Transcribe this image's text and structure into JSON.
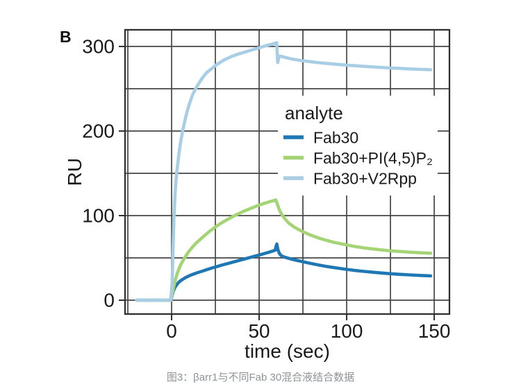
{
  "panel_label": "B",
  "caption": {
    "text": "图3：βarr1与不同Fab 30混合液结合数据",
    "color": "#8e9297"
  },
  "chart_data": {
    "type": "line",
    "title": "",
    "xlabel": "time (sec)",
    "ylabel": "RU",
    "xlim": [
      -26.6,
      158.7
    ],
    "ylim": [
      -16.4,
      319.7
    ],
    "xticks": [
      0,
      50,
      100,
      150
    ],
    "yticks": [
      0,
      100,
      200,
      300
    ],
    "xgrid": [
      -25,
      0,
      25,
      50,
      75,
      100,
      125,
      150
    ],
    "ygrid": [
      0,
      50,
      100,
      150,
      200,
      250,
      300
    ],
    "grid": true,
    "colors": {
      "grid": "#454545",
      "frame": "#303030",
      "text": "#1a1a1a",
      "legend_bg": "#ffffff"
    },
    "legend": {
      "title": "analyte",
      "position": "inside-upper-right"
    },
    "series": [
      {
        "name": "Fab30",
        "color": "#1f78b4",
        "points": [
          [
            -20,
            0
          ],
          [
            -5,
            0
          ],
          [
            -0.5,
            0
          ],
          [
            0.5,
            7
          ],
          [
            1,
            11
          ],
          [
            2,
            15.5
          ],
          [
            3,
            18.5
          ],
          [
            4,
            21
          ],
          [
            5,
            22.8
          ],
          [
            6,
            24.3
          ],
          [
            8,
            26.8
          ],
          [
            10,
            28.8
          ],
          [
            12,
            30.5
          ],
          [
            14,
            32
          ],
          [
            17,
            34
          ],
          [
            20,
            36
          ],
          [
            23,
            38
          ],
          [
            26,
            39.8
          ],
          [
            29,
            41.6
          ],
          [
            32,
            43.3
          ],
          [
            35,
            45
          ],
          [
            38,
            46.7
          ],
          [
            41,
            48.4
          ],
          [
            44,
            50
          ],
          [
            47,
            51.7
          ],
          [
            50,
            53.4
          ],
          [
            53,
            55.2
          ],
          [
            56,
            57
          ],
          [
            58,
            58.3
          ],
          [
            59.2,
            59.2
          ],
          [
            59.6,
            63
          ],
          [
            60.1,
            66.5
          ],
          [
            60.7,
            60
          ],
          [
            61.5,
            55.5
          ],
          [
            62.5,
            52.8
          ],
          [
            64,
            51.3
          ],
          [
            66,
            50
          ],
          [
            69,
            48.3
          ],
          [
            72,
            46.8
          ],
          [
            76,
            45
          ],
          [
            80,
            43.2
          ],
          [
            84,
            41.6
          ],
          [
            88,
            40.1
          ],
          [
            92,
            38.8
          ],
          [
            96,
            37.6
          ],
          [
            100,
            36.4
          ],
          [
            105,
            35.1
          ],
          [
            110,
            34
          ],
          [
            115,
            33
          ],
          [
            120,
            32.1
          ],
          [
            125,
            31.3
          ],
          [
            130,
            30.6
          ],
          [
            136,
            29.9
          ],
          [
            142,
            29.3
          ],
          [
            148,
            28.8
          ]
        ]
      },
      {
        "name": "Fab30+PI(4,5)P₂",
        "color": "#a4d475",
        "points": [
          [
            -20,
            0
          ],
          [
            -5,
            0
          ],
          [
            -0.5,
            0
          ],
          [
            0.5,
            8
          ],
          [
            1,
            14
          ],
          [
            2,
            23
          ],
          [
            3,
            30
          ],
          [
            4,
            36
          ],
          [
            5,
            41
          ],
          [
            6,
            45
          ],
          [
            8,
            52
          ],
          [
            10,
            58
          ],
          [
            12,
            63
          ],
          [
            14,
            67.5
          ],
          [
            17,
            73
          ],
          [
            20,
            78.5
          ],
          [
            23,
            83.5
          ],
          [
            26,
            88
          ],
          [
            29,
            92
          ],
          [
            32,
            95.5
          ],
          [
            35,
            99
          ],
          [
            38,
            102
          ],
          [
            41,
            105
          ],
          [
            44,
            107.5
          ],
          [
            47,
            110
          ],
          [
            50,
            112.5
          ],
          [
            53,
            114.5
          ],
          [
            56,
            116.5
          ],
          [
            58,
            117.5
          ],
          [
            59.5,
            118.5
          ],
          [
            60.5,
            113
          ],
          [
            61.5,
            107
          ],
          [
            63,
            101
          ],
          [
            65,
            95.5
          ],
          [
            67,
            91
          ],
          [
            70,
            86.5
          ],
          [
            73,
            83
          ],
          [
            76,
            80
          ],
          [
            80,
            76.5
          ],
          [
            84,
            73.5
          ],
          [
            88,
            71
          ],
          [
            92,
            68.8
          ],
          [
            96,
            67
          ],
          [
            100,
            65.3
          ],
          [
            105,
            63.4
          ],
          [
            110,
            61.8
          ],
          [
            115,
            60.5
          ],
          [
            120,
            59.4
          ],
          [
            125,
            58.4
          ],
          [
            130,
            57.6
          ],
          [
            135,
            56.9
          ],
          [
            140,
            56.3
          ],
          [
            144,
            55.9
          ],
          [
            148,
            55.5
          ]
        ]
      },
      {
        "name": "Fab30+V2Rpp",
        "color": "#a8cee6",
        "points": [
          [
            -20,
            0
          ],
          [
            -5,
            0
          ],
          [
            -0.5,
            0
          ],
          [
            0.3,
            20
          ],
          [
            0.8,
            60
          ],
          [
            1.3,
            95
          ],
          [
            2,
            127
          ],
          [
            2.5,
            141
          ],
          [
            3,
            152
          ],
          [
            4,
            170
          ],
          [
            5,
            185
          ],
          [
            6,
            197
          ],
          [
            7,
            207
          ],
          [
            8,
            216
          ],
          [
            9,
            224
          ],
          [
            10,
            231
          ],
          [
            12,
            243
          ],
          [
            14,
            251
          ],
          [
            16,
            258
          ],
          [
            18,
            264
          ],
          [
            20,
            269
          ],
          [
            23,
            274
          ],
          [
            26,
            279
          ],
          [
            30,
            284
          ],
          [
            34,
            288
          ],
          [
            38,
            291
          ],
          [
            42,
            293.5
          ],
          [
            46,
            296
          ],
          [
            50,
            298.5
          ],
          [
            54,
            301
          ],
          [
            57,
            302.5
          ],
          [
            60,
            304.5
          ],
          [
            60.6,
            281
          ],
          [
            61.4,
            288.5
          ],
          [
            62.5,
            288.5
          ],
          [
            64,
            287.5
          ],
          [
            66,
            286.5
          ],
          [
            69,
            285
          ],
          [
            72,
            284
          ],
          [
            76,
            282.8
          ],
          [
            80,
            281.8
          ],
          [
            85,
            280.7
          ],
          [
            90,
            279.7
          ],
          [
            95,
            278.8
          ],
          [
            100,
            278
          ],
          [
            106,
            277
          ],
          [
            112,
            276.2
          ],
          [
            118,
            275.4
          ],
          [
            124,
            274.7
          ],
          [
            130,
            274.1
          ],
          [
            136,
            273.5
          ],
          [
            142,
            273
          ],
          [
            148,
            272.5
          ]
        ]
      }
    ]
  }
}
